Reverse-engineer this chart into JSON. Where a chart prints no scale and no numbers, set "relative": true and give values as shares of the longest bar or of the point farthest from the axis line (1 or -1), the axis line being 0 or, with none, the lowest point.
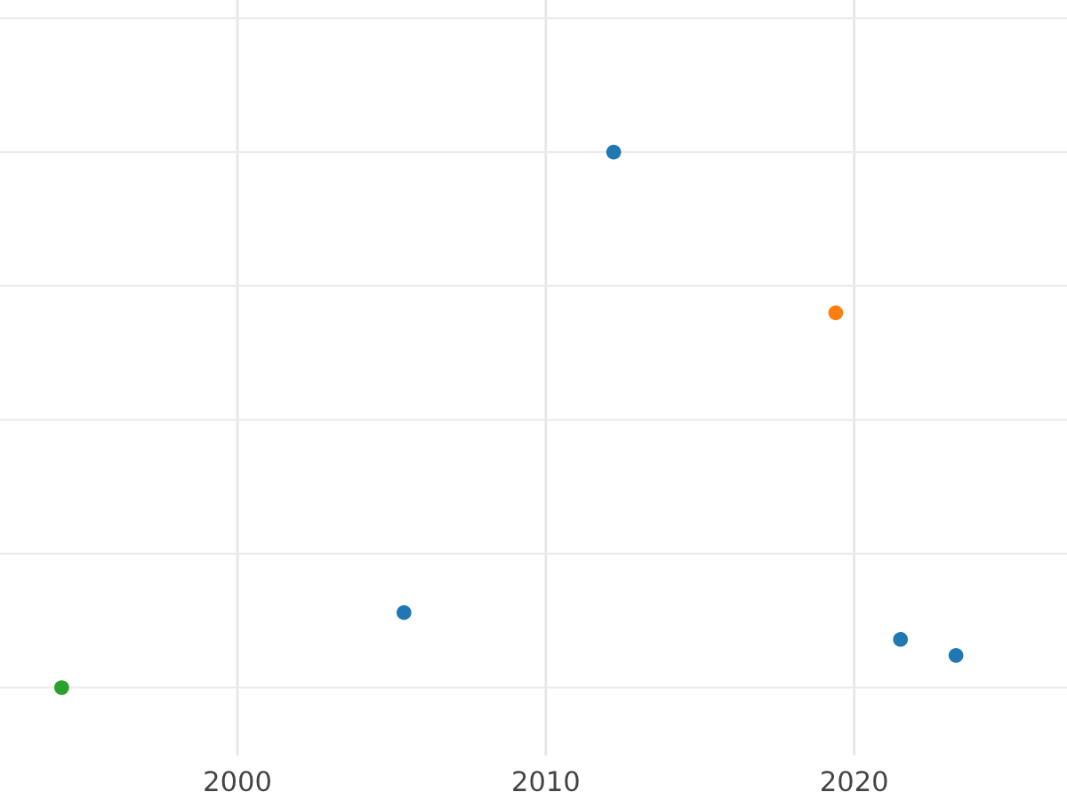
{
  "chart_data": {
    "type": "scatter",
    "relative": true,
    "x": [
      1994.3,
      2005.4,
      2012.2,
      2019.4,
      2021.5,
      2023.3
    ],
    "values": [
      0,
      0.14,
      1,
      0.7,
      0.09,
      0.06
    ],
    "colors": [
      "#2ca02c",
      "#1f77b4",
      "#1f77b4",
      "#ff7f0e",
      "#1f77b4",
      "#1f77b4"
    ],
    "xlim": [
      1992.3,
      2026.9
    ],
    "xticks": [
      2000,
      2010,
      2020
    ],
    "grid": true,
    "marker": "circle",
    "tick_labels": "x"
  }
}
